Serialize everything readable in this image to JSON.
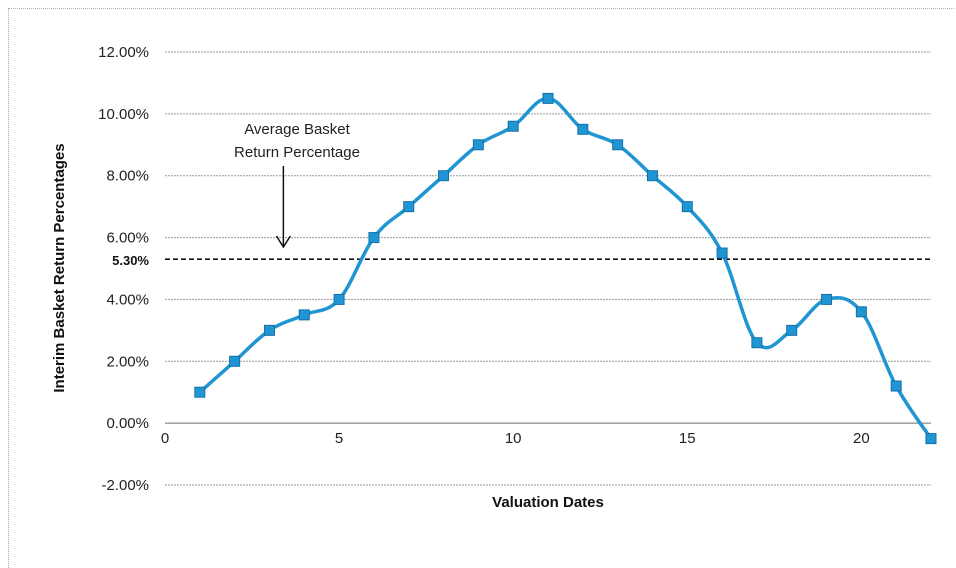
{
  "chart_data": {
    "type": "line",
    "xlabel": "Valuation Dates",
    "ylabel": "Interim Basket Return Percentages",
    "xlim": [
      0,
      22
    ],
    "ylim": [
      -0.02,
      0.12
    ],
    "x_ticks": [
      0,
      5,
      10,
      15,
      20
    ],
    "x_tick_labels": [
      "0",
      "5",
      "10",
      "15",
      "20"
    ],
    "y_ticks": [
      -0.02,
      0,
      0.02,
      0.04,
      0.06,
      0.08,
      0.1,
      0.12
    ],
    "y_tick_labels": [
      "-2.00%",
      "0.00%",
      "2.00%",
      "4.00%",
      "6.00%",
      "8.00%",
      "10.00%",
      "12.00%"
    ],
    "grid": "horizontal",
    "series": [
      {
        "color": "#1f96d3",
        "x": [
          1,
          2,
          3,
          4,
          5,
          6,
          7,
          8,
          9,
          10,
          11,
          12,
          13,
          14,
          15,
          16,
          17,
          18,
          19,
          20,
          21,
          22
        ],
        "y": [
          0.01,
          0.02,
          0.03,
          0.035,
          0.04,
          0.06,
          0.07,
          0.08,
          0.09,
          0.096,
          0.105,
          0.095,
          0.09,
          0.08,
          0.07,
          0.055,
          0.026,
          0.03,
          0.04,
          0.036,
          0.012,
          -0.005
        ]
      }
    ],
    "reference_line": {
      "y": 0.053,
      "label": "5.30%",
      "style": "dashed"
    },
    "annotation": {
      "lines": [
        "Average Basket",
        "Return Percentage"
      ],
      "arrow_x": 3.4
    }
  }
}
